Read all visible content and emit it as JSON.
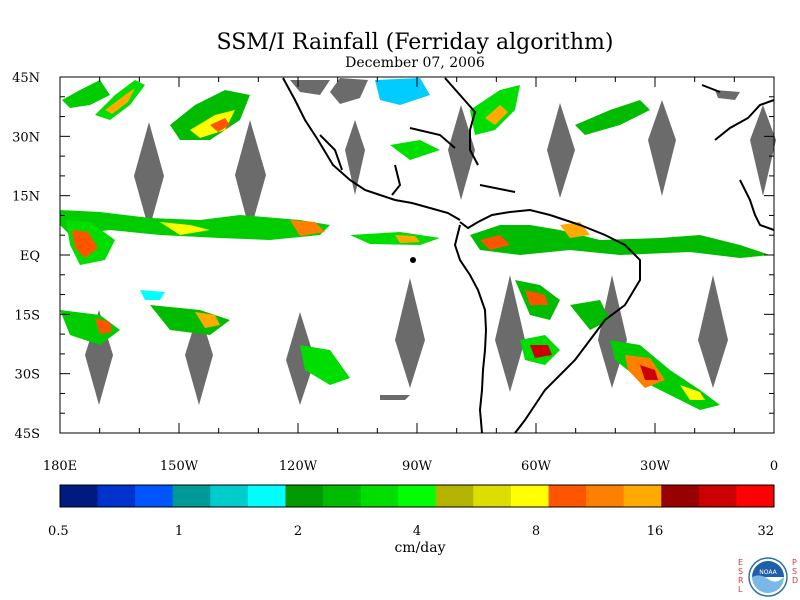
{
  "title": "SSM/I Rainfall (Ferriday algorithm)",
  "subtitle": "December 07, 2006",
  "axes": {
    "lat_labels": [
      "45N",
      "30N",
      "15N",
      "EQ",
      "15S",
      "30S",
      "45S"
    ],
    "lat_values": [
      45,
      30,
      15,
      0,
      -15,
      -30,
      -45
    ],
    "lon_labels": [
      "180E",
      "150W",
      "120W",
      "90W",
      "60W",
      "30W",
      "0"
    ],
    "lon_values": [
      -180,
      -150,
      -120,
      -90,
      -60,
      -30,
      0
    ]
  },
  "colorbar": {
    "units": "cm/day",
    "tick_labels": [
      "0.5",
      "1",
      "2",
      "4",
      "8",
      "16",
      "32"
    ],
    "colors": [
      "#001a80",
      "#0033cc",
      "#0055ff",
      "#009999",
      "#00cccc",
      "#00ffff",
      "#009900",
      "#00bb00",
      "#00dd00",
      "#00ff00",
      "#b3b300",
      "#dddd00",
      "#ffff00",
      "#ff5500",
      "#ff8000",
      "#ffaa00",
      "#990000",
      "#cc0000",
      "#ff0000"
    ]
  },
  "logo": {
    "org_left": "ESRL",
    "org_right": "PSD",
    "emblem": "NOAA"
  }
}
